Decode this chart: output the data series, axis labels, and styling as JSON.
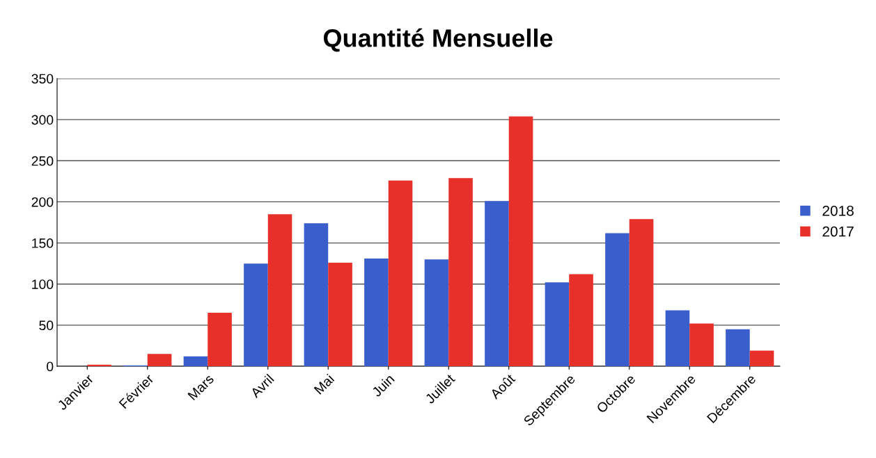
{
  "chart_data": {
    "type": "bar",
    "title": "Quantité Mensuelle",
    "categories": [
      "Janvier",
      "Février",
      "Mars",
      "Avril",
      "Mai",
      "Juin",
      "Juillet",
      "Août",
      "Septembre",
      "Octobre",
      "Novembre",
      "Décembre"
    ],
    "series": [
      {
        "name": "2018",
        "color": "#3a5fcd",
        "values": [
          0,
          1,
          12,
          125,
          174,
          131,
          130,
          201,
          102,
          162,
          68,
          45
        ]
      },
      {
        "name": "2017",
        "color": "#e8302a",
        "values": [
          2,
          15,
          65,
          185,
          126,
          226,
          229,
          304,
          112,
          179,
          52,
          19
        ]
      }
    ],
    "ylim": [
      0,
      350
    ],
    "yticks": [
      0,
      50,
      100,
      150,
      200,
      250,
      300,
      350
    ],
    "grid": "y",
    "legend": "right"
  }
}
